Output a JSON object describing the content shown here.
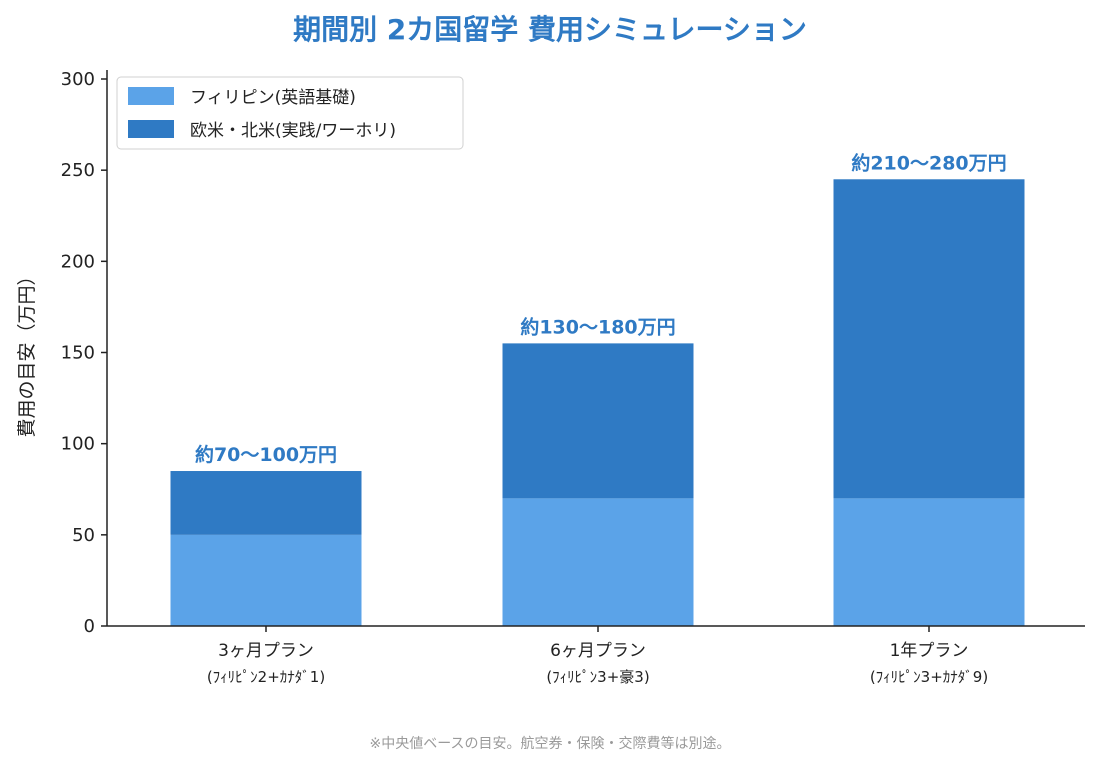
{
  "colors": {
    "series1": "#5ba3e8",
    "series2": "#2f7ac4",
    "title": "#2f7ac4",
    "axis": "#222222"
  },
  "chart_data": {
    "type": "bar",
    "stacked": true,
    "title": "期間別 2カ国留学 費用シミュレーション",
    "ylabel": "費用の目安（万円）",
    "xlabel": "",
    "ylim": [
      0,
      300
    ],
    "yticks": [
      0,
      50,
      100,
      150,
      200,
      250,
      300
    ],
    "categories": [
      "3ヶ月プラン",
      "6ヶ月プラン",
      "1年プラン"
    ],
    "category_sublabels": [
      "(ﾌｨﾘﾋﾟﾝ2+ｶﾅﾀﾞ1)",
      "(ﾌｨﾘﾋﾟﾝ3+豪3)",
      "(ﾌｨﾘﾋﾟﾝ3+ｶﾅﾀﾞ9)"
    ],
    "series": [
      {
        "name": "フィリピン(英語基礎)",
        "values": [
          50,
          70,
          70
        ]
      },
      {
        "name": "欧米・北米(実践/ワーホリ)",
        "values": [
          35,
          85,
          175
        ]
      }
    ],
    "data_labels": [
      "約70〜100万円",
      "約130〜180万円",
      "約210〜280万円"
    ],
    "legend_position": "top-left",
    "grid": false
  },
  "footnote": "※中央値ベースの目安。航空券・保険・交際費等は別途。"
}
